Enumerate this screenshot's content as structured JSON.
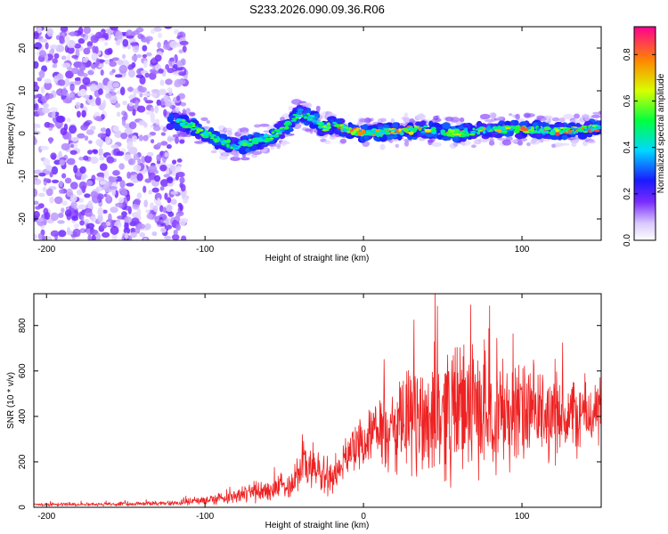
{
  "chart_data": [
    {
      "type": "heatmap",
      "title": "S233.2026.090.09.36.R06",
      "xlabel": "Height of straight line (km)",
      "ylabel": "Frequency (Hz)",
      "xlim": [
        -208,
        150
      ],
      "ylim": [
        -25,
        25
      ],
      "xticks": [
        -200,
        -100,
        0,
        100
      ],
      "yticks": [
        -20,
        -10,
        0,
        10,
        20
      ],
      "ridge": {
        "x": [
          -120,
          -110,
          -100,
          -90,
          -80,
          -70,
          -60,
          -50,
          -45,
          -40,
          -35,
          -30,
          -25,
          -20,
          -10,
          0,
          20,
          40,
          60,
          80,
          100,
          120,
          140,
          150
        ],
        "freq": [
          3,
          2,
          0,
          -2,
          -3,
          -2,
          -1,
          1,
          3,
          5,
          4,
          3,
          1,
          2,
          1,
          0,
          0.5,
          1,
          0,
          1,
          1,
          0.5,
          1,
          1.5
        ]
      },
      "colorbar": {
        "label": "Normalized spectral amplitude",
        "ticks": [
          "0.0",
          "0.2",
          "0.4",
          "0.6",
          "0.8"
        ],
        "range": [
          0,
          0.92
        ]
      }
    },
    {
      "type": "line",
      "xlabel": "Height of straight line (km)",
      "ylabel": "SNR (10 * v/v)",
      "xlim": [
        -208,
        150
      ],
      "ylim": [
        0,
        940
      ],
      "xticks": [
        -200,
        -100,
        0,
        100
      ],
      "yticks": [
        0,
        200,
        400,
        600,
        800
      ],
      "series": [
        {
          "name": "SNR",
          "color": "#ee2222",
          "envelope": {
            "x": [
              -208,
              -150,
              -120,
              -100,
              -80,
              -60,
              -45,
              -38,
              -30,
              -20,
              -15,
              -10,
              0,
              10,
              20,
              30,
              40,
              50,
              60,
              70,
              80,
              90,
              100,
              110,
              120,
              130,
              140,
              150
            ],
            "mean": [
              12,
              15,
              18,
              30,
              55,
              70,
              110,
              200,
              160,
              120,
              170,
              240,
              300,
              320,
              330,
              370,
              400,
              420,
              440,
              430,
              420,
              420,
              410,
              410,
              400,
              400,
              410,
              420
            ],
            "amp": [
              8,
              10,
              12,
              25,
              40,
              55,
              80,
              140,
              120,
              90,
              80,
              100,
              130,
              180,
              240,
              300,
              340,
              360,
              360,
              330,
              300,
              300,
              280,
              250,
              230,
              210,
              200,
              180
            ]
          }
        }
      ]
    }
  ]
}
